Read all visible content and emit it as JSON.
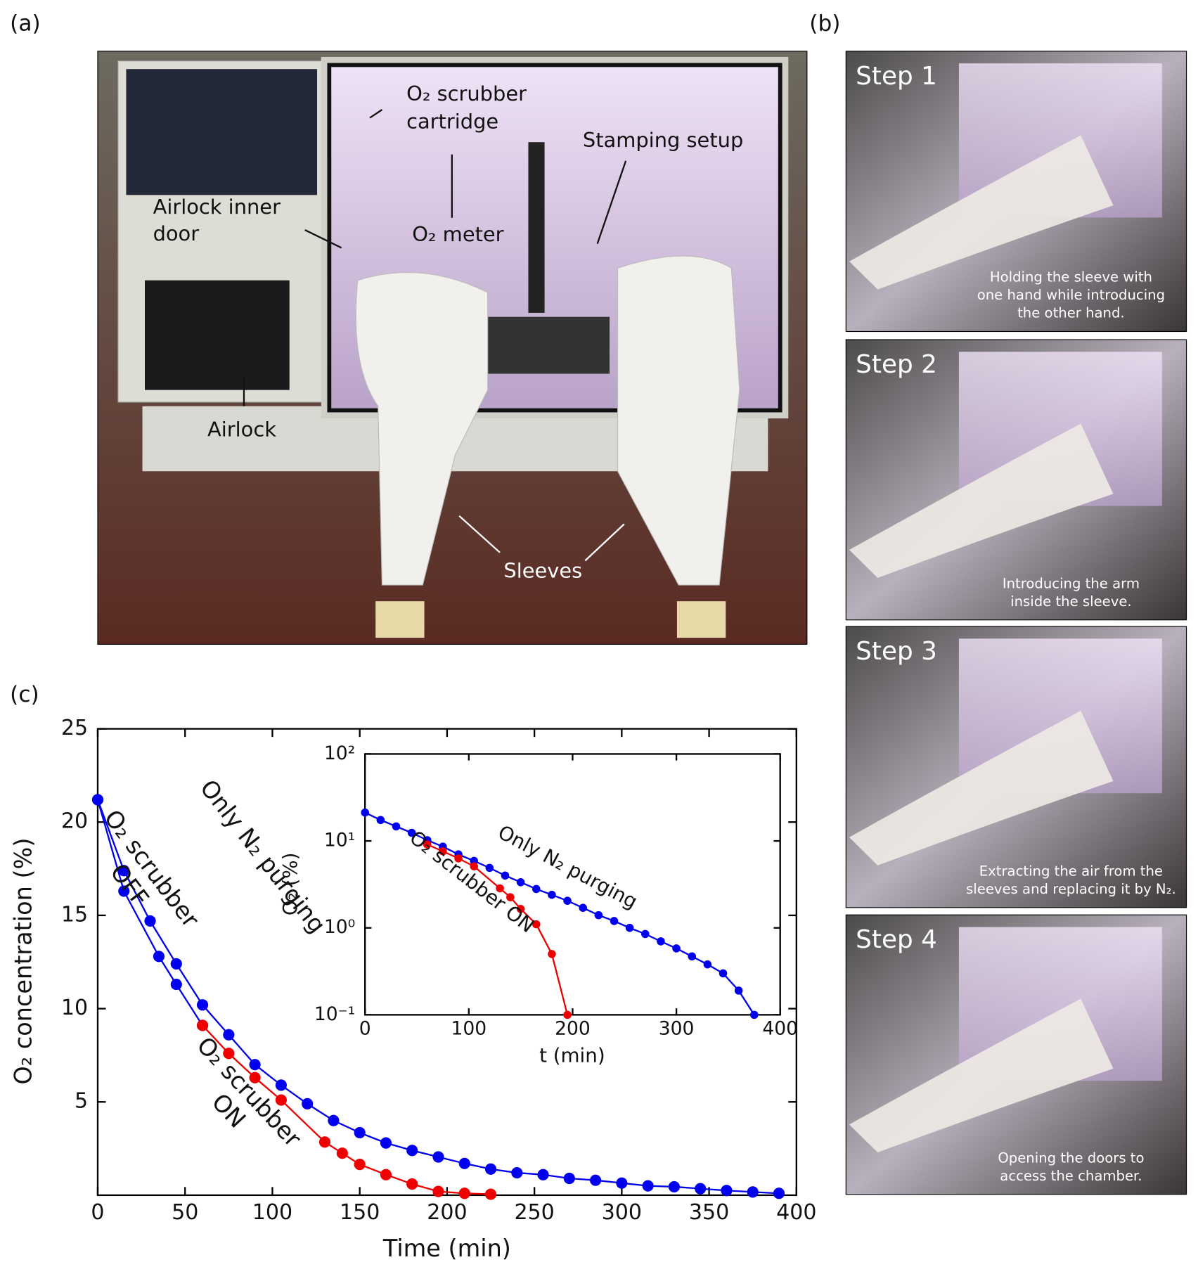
{
  "panel_labels": [
    "(a)",
    "(b)",
    "(c)"
  ],
  "photo_a": {
    "labels": [
      {
        "lines": [
          "O₂ scrubber",
          "cartridge"
        ]
      },
      {
        "lines": [
          "Stamping setup"
        ]
      },
      {
        "lines": [
          "Airlock inner",
          "door"
        ]
      },
      {
        "lines": [
          "O₂ meter"
        ]
      },
      {
        "lines": [
          "Airlock"
        ]
      },
      {
        "lines": [
          "Sleeves"
        ]
      }
    ]
  },
  "photos_b": [
    {
      "step": "Step 1",
      "caption": [
        "Holding the sleeve with",
        "one hand while introducing",
        "the other hand."
      ]
    },
    {
      "step": "Step 2",
      "caption": [
        "Introducing the arm",
        "inside the sleeve."
      ]
    },
    {
      "step": "Step 3",
      "caption": [
        "Extracting the air from the",
        "sleeves and replacing it by N₂."
      ]
    },
    {
      "step": "Step 4",
      "caption": [
        "Opening the doors to",
        "access the chamber."
      ]
    }
  ],
  "chart_data": [
    {
      "type": "line",
      "x_label": "Time (min)",
      "y_label": "O₂ concentration (%)",
      "xlim": [
        0,
        400
      ],
      "ylim": [
        0,
        25
      ],
      "xticks": [
        0,
        50,
        100,
        150,
        200,
        250,
        300,
        350,
        400
      ],
      "yticks": [
        5,
        10,
        15,
        20,
        25
      ],
      "log_y": false,
      "series": [
        {
          "color": "#0000ee",
          "x": [
            0,
            15,
            30,
            45,
            60,
            75,
            90,
            105,
            120,
            135,
            150,
            165,
            180,
            195,
            210,
            225,
            240,
            255,
            270,
            285,
            300,
            315,
            330,
            345,
            360,
            375,
            390
          ],
          "values": [
            21.2,
            17.4,
            14.7,
            12.4,
            10.2,
            8.6,
            7.0,
            5.9,
            4.9,
            4.0,
            3.35,
            2.8,
            2.4,
            2.05,
            1.7,
            1.4,
            1.2,
            1.1,
            0.9,
            0.8,
            0.65,
            0.5,
            0.45,
            0.35,
            0.25,
            0.17,
            0.1
          ]
        },
        {
          "color": "#0000ee",
          "x": [
            0,
            15,
            35,
            45,
            60
          ],
          "values": [
            21.2,
            16.3,
            12.8,
            11.3,
            9.1
          ]
        },
        {
          "color": "#ee0000",
          "x": [
            60,
            75,
            90,
            105,
            130,
            140,
            150,
            165,
            180,
            195,
            210,
            225
          ],
          "values": [
            9.1,
            7.6,
            6.3,
            5.1,
            2.85,
            2.25,
            1.65,
            1.1,
            0.6,
            0.2,
            0.1,
            0.05
          ]
        }
      ],
      "annotations": [
        {
          "lines": [
            "O₂ scrubber",
            "OFF"
          ],
          "color": "#0000ee"
        },
        {
          "lines": [
            "Only N₂ purging"
          ],
          "color": "#0000ee"
        },
        {
          "lines": [
            "O₂ scrubber",
            "ON"
          ],
          "color": "#ee0000"
        }
      ]
    },
    {
      "type": "line",
      "x_label": "t (min)",
      "y_label": "O₂ (%)",
      "xlim": [
        0,
        400
      ],
      "ylim": [
        0.1,
        100
      ],
      "xticks": [
        0,
        100,
        200,
        300,
        400
      ],
      "yticks": [
        {
          "value": 0.1,
          "label": "10⁻¹"
        },
        {
          "value": 1,
          "label": "10⁰"
        },
        {
          "value": 10,
          "label": "10¹"
        },
        {
          "value": 100,
          "label": "10²"
        }
      ],
      "log_y": true,
      "series": [
        {
          "color": "#0000ee",
          "x": [
            0,
            15,
            30,
            45,
            60,
            75,
            90,
            105,
            120,
            135,
            150,
            165,
            180,
            195,
            210,
            225,
            240,
            255,
            270,
            285,
            300,
            315,
            330,
            345,
            360,
            375
          ],
          "values": [
            21.2,
            17.4,
            14.7,
            12.4,
            10.2,
            8.6,
            7.0,
            5.9,
            4.9,
            4.0,
            3.35,
            2.8,
            2.4,
            2.05,
            1.7,
            1.4,
            1.2,
            1.0,
            0.85,
            0.7,
            0.58,
            0.47,
            0.38,
            0.3,
            0.19,
            0.1
          ]
        },
        {
          "color": "#ee0000",
          "x": [
            60,
            75,
            90,
            105,
            130,
            140,
            150,
            165,
            180,
            195
          ],
          "values": [
            9.1,
            7.6,
            6.3,
            5.1,
            2.85,
            2.25,
            1.65,
            1.1,
            0.5,
            0.1
          ]
        }
      ],
      "annotations": [
        {
          "lines": [
            "Only N₂ purging"
          ],
          "color": "#0000ee"
        },
        {
          "lines": [
            "O₂ scrubber ON"
          ],
          "color": "#ee0000"
        }
      ]
    }
  ]
}
